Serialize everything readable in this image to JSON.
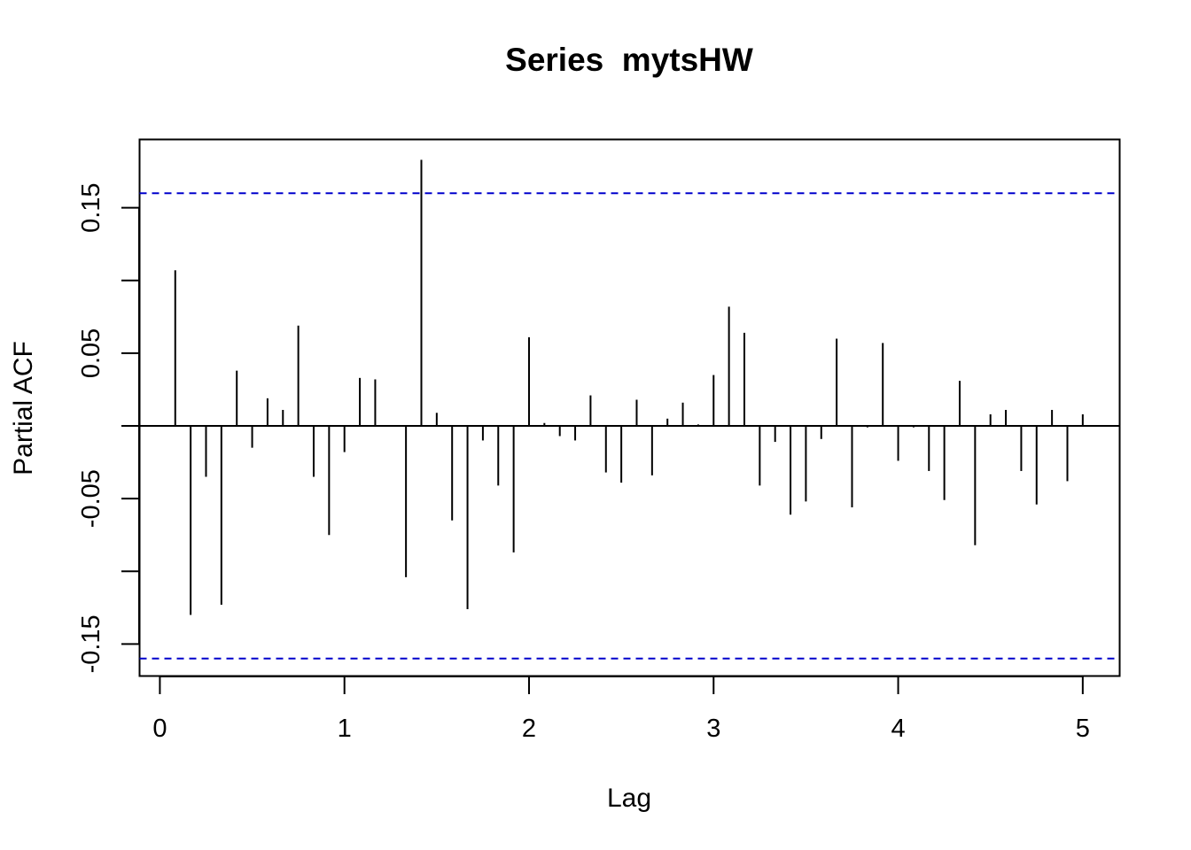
{
  "chart_data": {
    "type": "bar",
    "title": "Series  mytsHW",
    "xlabel": "Lag",
    "ylabel": "Partial ACF",
    "xlim": [
      -0.11,
      5.2
    ],
    "ylim": [
      -0.172,
      0.197
    ],
    "x_ticks": [
      "0",
      "1",
      "2",
      "3",
      "4",
      "5"
    ],
    "y_ticks": [
      "-0.15",
      "-0.05",
      "0.05",
      "0.15"
    ],
    "confidence_band": {
      "upper": 0.16,
      "lower": -0.16,
      "color": "#0000cc",
      "style": "dashed"
    },
    "zero_line": true,
    "bar_color": "#000000",
    "x": [
      0.0833,
      0.1667,
      0.25,
      0.3333,
      0.4167,
      0.5,
      0.5833,
      0.6667,
      0.75,
      0.8333,
      0.9167,
      1.0,
      1.0833,
      1.1667,
      1.25,
      1.3333,
      1.4167,
      1.5,
      1.5833,
      1.6667,
      1.75,
      1.8333,
      1.9167,
      2.0,
      2.0833,
      2.1667,
      2.25,
      2.3333,
      2.4167,
      2.5,
      2.5833,
      2.6667,
      2.75,
      2.8333,
      2.9167,
      3.0,
      3.0833,
      3.1667,
      3.25,
      3.3333,
      3.4167,
      3.5,
      3.5833,
      3.6667,
      3.75,
      3.8333,
      3.9167,
      4.0,
      4.0833,
      4.1667,
      4.25,
      4.3333,
      4.4167,
      4.5,
      4.5833,
      4.6667,
      4.75,
      4.8333,
      4.9167,
      5.0
    ],
    "values": [
      0.107,
      -0.13,
      -0.035,
      -0.123,
      0.038,
      -0.015,
      0.019,
      0.011,
      0.069,
      -0.035,
      -0.075,
      -0.018,
      0.033,
      0.032,
      0.0,
      -0.104,
      0.183,
      0.009,
      -0.065,
      -0.126,
      -0.01,
      -0.041,
      -0.087,
      0.061,
      0.002,
      -0.007,
      -0.01,
      0.021,
      -0.032,
      -0.039,
      0.018,
      -0.034,
      0.005,
      0.016,
      0.001,
      0.035,
      0.082,
      0.064,
      -0.041,
      -0.011,
      -0.061,
      -0.052,
      -0.009,
      0.06,
      -0.056,
      -0.001,
      0.057,
      -0.024,
      -0.001,
      -0.031,
      -0.051,
      0.031,
      -0.082,
      0.008,
      0.011,
      -0.031,
      -0.054,
      0.011,
      -0.038,
      0.008
    ]
  }
}
